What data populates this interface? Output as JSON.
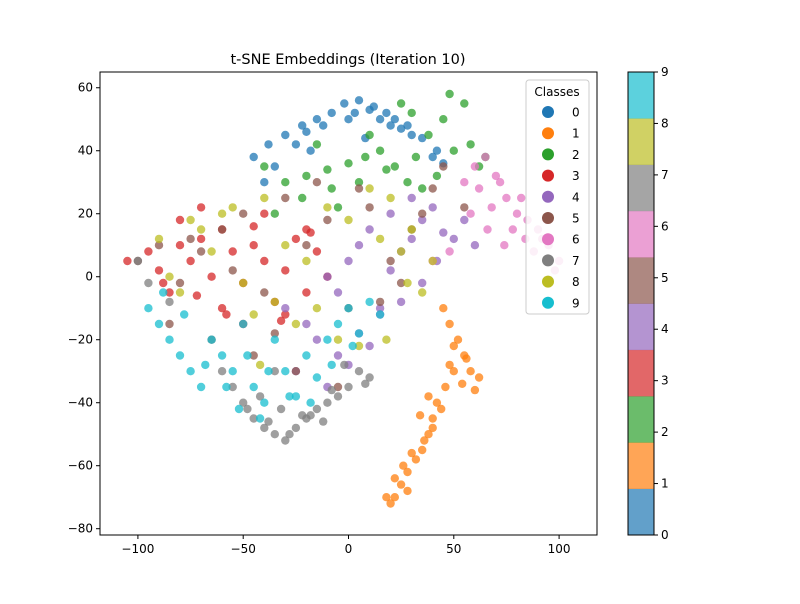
{
  "chart_data": {
    "type": "scatter",
    "title": "t-SNE Embeddings (Iteration 10)",
    "xlabel": "",
    "ylabel": "",
    "xlim": [
      -118,
      118
    ],
    "ylim": [
      -82,
      65
    ],
    "x_ticks": [
      -100,
      -50,
      0,
      50,
      100
    ],
    "x_tick_labels": [
      "−100",
      "−50",
      "0",
      "50",
      "100"
    ],
    "y_ticks": [
      -80,
      -60,
      -40,
      -20,
      0,
      20,
      40,
      60
    ],
    "y_tick_labels": [
      "−80",
      "−60",
      "−40",
      "−20",
      "0",
      "20",
      "40",
      "60"
    ],
    "grid": false,
    "legend": {
      "title": "Classes",
      "placement": "upper right",
      "entries": [
        "0",
        "1",
        "2",
        "3",
        "4",
        "5",
        "6",
        "7",
        "8",
        "9"
      ]
    },
    "colors": [
      "#1f77b4",
      "#ff7f0e",
      "#2ca02c",
      "#d62728",
      "#9467bd",
      "#8c564b",
      "#e377c2",
      "#7f7f7f",
      "#bcbd22",
      "#17becf"
    ],
    "colorbar": {
      "ticks": [
        0,
        1,
        2,
        3,
        4,
        5,
        6,
        7,
        8,
        9
      ],
      "tick_labels": [
        "0",
        "1",
        "2",
        "3",
        "4",
        "5",
        "6",
        "7",
        "8",
        "9"
      ],
      "range": [
        0,
        9
      ]
    },
    "series": [
      {
        "name": "0",
        "x": [
          -45,
          -38,
          -30,
          -22,
          -15,
          -8,
          -2,
          5,
          12,
          18,
          22,
          28,
          35,
          42,
          -35,
          -20,
          0,
          10,
          25,
          40,
          -25,
          -12,
          3,
          15,
          30,
          45,
          -40,
          -18,
          8,
          20
        ],
        "y": [
          38,
          42,
          45,
          48,
          50,
          52,
          55,
          56,
          54,
          52,
          50,
          48,
          44,
          40,
          35,
          46,
          50,
          53,
          47,
          38,
          42,
          48,
          52,
          50,
          45,
          36,
          30,
          40,
          44,
          48
        ]
      },
      {
        "name": "1",
        "x": [
          45,
          48,
          52,
          55,
          50,
          46,
          42,
          40,
          38,
          35,
          32,
          28,
          25,
          22,
          20,
          18,
          48,
          54,
          58,
          60,
          44,
          40,
          36,
          30,
          26,
          22,
          50,
          56,
          62,
          38,
          34,
          28
        ],
        "y": [
          -10,
          -15,
          -20,
          -25,
          -30,
          -35,
          -40,
          -45,
          -50,
          -55,
          -58,
          -62,
          -66,
          -70,
          -72,
          -70,
          -28,
          -34,
          -30,
          -36,
          -42,
          -48,
          -52,
          -56,
          -60,
          -64,
          -22,
          -26,
          -32,
          -38,
          -44,
          -68
        ]
      },
      {
        "name": "2",
        "x": [
          -40,
          -30,
          -20,
          -10,
          0,
          8,
          15,
          22,
          28,
          35,
          42,
          50,
          58,
          65,
          -35,
          -22,
          -8,
          5,
          18,
          32,
          45,
          55,
          -15,
          10,
          30,
          48,
          62,
          38,
          25,
          -5
        ],
        "y": [
          35,
          30,
          32,
          34,
          36,
          38,
          40,
          35,
          30,
          28,
          32,
          40,
          42,
          38,
          20,
          25,
          28,
          30,
          34,
          38,
          50,
          55,
          42,
          45,
          52,
          58,
          35,
          45,
          55,
          22
        ]
      },
      {
        "name": "3",
        "x": [
          -105,
          -95,
          -90,
          -85,
          -80,
          -75,
          -70,
          -65,
          -60,
          -55,
          -50,
          -45,
          -40,
          -35,
          -30,
          -25,
          -20,
          -15,
          -10,
          -80,
          -70,
          -60,
          -50,
          -40,
          -30,
          -20,
          -88,
          -72,
          -58,
          -45,
          -32,
          -18
        ],
        "y": [
          5,
          8,
          2,
          -5,
          10,
          5,
          12,
          0,
          15,
          8,
          -2,
          10,
          5,
          -8,
          2,
          12,
          -5,
          8,
          0,
          18,
          22,
          -10,
          -15,
          20,
          -12,
          15,
          -2,
          -6,
          -12,
          16,
          -14,
          14
        ]
      },
      {
        "name": "4",
        "x": [
          -10,
          -5,
          0,
          5,
          10,
          15,
          20,
          25,
          30,
          35,
          40,
          -20,
          -15,
          -5,
          5,
          15,
          25,
          35,
          45,
          55,
          60,
          -25,
          -10,
          0,
          10,
          20,
          30,
          42,
          50,
          -30
        ],
        "y": [
          0,
          -5,
          5,
          10,
          15,
          -10,
          2,
          8,
          12,
          18,
          22,
          -15,
          -20,
          -25,
          -18,
          -12,
          -8,
          -2,
          14,
          18,
          10,
          -30,
          -35,
          -28,
          -22,
          20,
          25,
          5,
          12,
          -10
        ]
      },
      {
        "name": "5",
        "x": [
          -100,
          -90,
          -80,
          -70,
          -60,
          -50,
          -40,
          -30,
          -20,
          -10,
          0,
          10,
          20,
          30,
          40,
          -85,
          -65,
          -45,
          -25,
          -5,
          15,
          35,
          55,
          -75,
          -55,
          -35,
          -15,
          5,
          25,
          45
        ],
        "y": [
          5,
          10,
          -2,
          8,
          15,
          20,
          -5,
          25,
          10,
          18,
          -10,
          22,
          5,
          15,
          28,
          -15,
          -20,
          -25,
          -30,
          -35,
          -8,
          20,
          22,
          12,
          2,
          -18,
          30,
          28,
          -2,
          35
        ]
      },
      {
        "name": "6",
        "x": [
          55,
          60,
          65,
          70,
          75,
          80,
          85,
          90,
          95,
          100,
          62,
          68,
          72,
          78,
          82,
          88,
          92,
          98,
          58,
          66,
          74,
          84,
          94,
          40,
          48
        ],
        "y": [
          30,
          35,
          38,
          32,
          25,
          20,
          18,
          15,
          10,
          5,
          28,
          22,
          30,
          15,
          25,
          8,
          12,
          2,
          20,
          15,
          10,
          12,
          18,
          5,
          8
        ]
      },
      {
        "name": "7",
        "x": [
          -100,
          -95,
          -85,
          -60,
          -55,
          -50,
          -45,
          -40,
          -35,
          -30,
          -25,
          -20,
          -15,
          -10,
          -5,
          0,
          5,
          10,
          -48,
          -38,
          -28,
          -18,
          -8,
          -42,
          -32,
          -22,
          -12,
          -2,
          8,
          -35
        ],
        "y": [
          5,
          -2,
          -8,
          -30,
          -35,
          -40,
          -45,
          -48,
          -50,
          -52,
          -48,
          -45,
          -42,
          -40,
          -38,
          -35,
          -30,
          -32,
          -42,
          -46,
          -50,
          -44,
          -36,
          -38,
          -42,
          -44,
          -46,
          -28,
          -34,
          -30
        ]
      },
      {
        "name": "8",
        "x": [
          -90,
          -80,
          -70,
          -60,
          -50,
          -40,
          -30,
          -20,
          -10,
          0,
          10,
          20,
          30,
          40,
          -85,
          -65,
          -45,
          -25,
          -5,
          15,
          35,
          -75,
          -55,
          -35,
          -15,
          5,
          25,
          -42,
          18,
          28
        ],
        "y": [
          12,
          -5,
          15,
          20,
          -2,
          25,
          10,
          5,
          22,
          18,
          28,
          25,
          15,
          5,
          0,
          8,
          -12,
          -15,
          -20,
          12,
          -5,
          18,
          22,
          -8,
          -10,
          -22,
          8,
          -28,
          -20,
          -2
        ]
      },
      {
        "name": "9",
        "x": [
          -95,
          -90,
          -85,
          -80,
          -75,
          -70,
          -65,
          -60,
          -55,
          -50,
          -45,
          -40,
          -35,
          -30,
          -25,
          -20,
          -15,
          -10,
          -5,
          0,
          5,
          10,
          15,
          -88,
          -78,
          -68,
          -58,
          -48,
          -38,
          -28,
          -18,
          -8,
          2,
          -52,
          -42
        ],
        "y": [
          -10,
          -15,
          -20,
          -25,
          -30,
          -35,
          -20,
          -25,
          -30,
          -15,
          -35,
          -40,
          -20,
          -30,
          -38,
          -25,
          -32,
          -20,
          -15,
          -10,
          -18,
          -8,
          -12,
          -5,
          -12,
          -28,
          -35,
          -25,
          -30,
          -38,
          -40,
          -28,
          -22,
          -42,
          -45
        ]
      }
    ]
  }
}
